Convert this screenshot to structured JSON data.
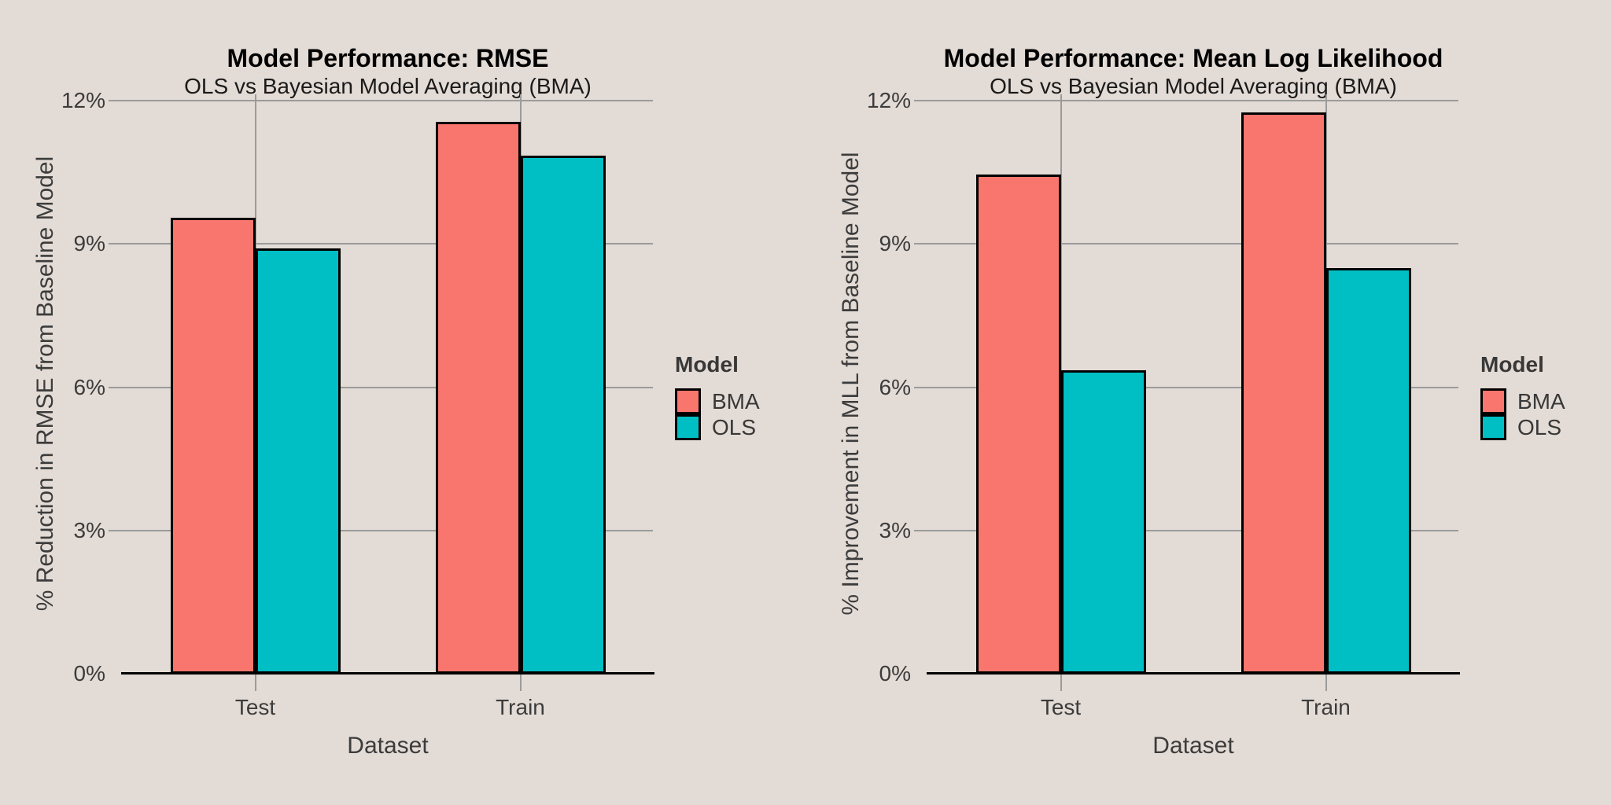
{
  "colors": {
    "background": "#E3DBD5",
    "grid": "#9B9B9B",
    "axis": "#000000",
    "text": "#3C3C3C",
    "bma": "#F8766D",
    "ols": "#00BFC4"
  },
  "chart_data": [
    {
      "type": "bar",
      "title": "Model Performance: RMSE",
      "subtitle": "OLS vs Bayesian Model Averaging (BMA)",
      "xlabel": "Dataset",
      "ylabel": "% Reduction in RMSE from Baseline Model",
      "categories": [
        "Test",
        "Train"
      ],
      "series": [
        {
          "name": "BMA",
          "color": "#F8766D",
          "values": [
            9.55,
            11.55
          ]
        },
        {
          "name": "OLS",
          "color": "#00BFC4",
          "values": [
            8.9,
            10.85
          ]
        }
      ],
      "yticks": [
        0,
        3,
        6,
        9,
        12
      ],
      "ytick_labels": [
        "0%",
        "3%",
        "6%",
        "9%",
        "12%"
      ],
      "ylim": [
        0,
        12.1
      ],
      "grid": true,
      "legend_title": "Model",
      "legend_position": "right"
    },
    {
      "type": "bar",
      "title": "Model Performance: Mean Log Likelihood",
      "subtitle": "OLS vs Bayesian Model Averaging (BMA)",
      "xlabel": "Dataset",
      "ylabel": "% Improvement in MLL from Baseline Model",
      "categories": [
        "Test",
        "Train"
      ],
      "series": [
        {
          "name": "BMA",
          "color": "#F8766D",
          "values": [
            10.45,
            11.75
          ]
        },
        {
          "name": "OLS",
          "color": "#00BFC4",
          "values": [
            6.35,
            8.5
          ]
        }
      ],
      "yticks": [
        0,
        3,
        6,
        9,
        12
      ],
      "ytick_labels": [
        "0%",
        "3%",
        "6%",
        "9%",
        "12%"
      ],
      "ylim": [
        0,
        12.1
      ],
      "grid": true,
      "legend_title": "Model",
      "legend_position": "right"
    }
  ]
}
